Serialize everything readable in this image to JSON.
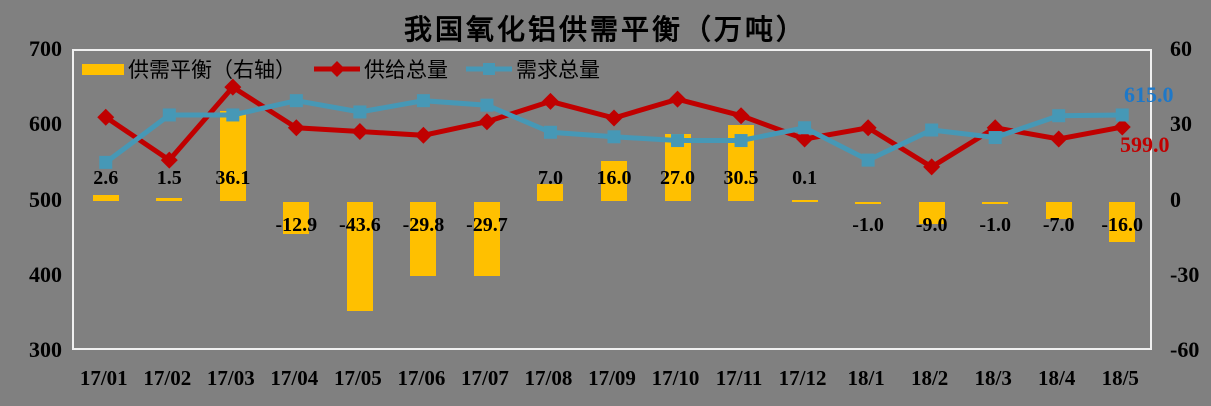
{
  "title": "我国氧化铝供需平衡（万吨）",
  "colors": {
    "background": "#808080",
    "plot_border": "#F0F0F0",
    "bar": "#FFC000",
    "supply_line": "#C00000",
    "demand_line": "#4698B6",
    "supply_end_label": "#C00000",
    "demand_end_label": "#1E78C8",
    "text": "#000000"
  },
  "chart_data": {
    "type": "combo",
    "categories": [
      "17/01",
      "17/02",
      "17/03",
      "17/04",
      "17/05",
      "17/06",
      "17/07",
      "17/08",
      "17/09",
      "17/10",
      "17/11",
      "17/12",
      "18/1",
      "18/2",
      "18/3",
      "18/4",
      "18/5"
    ],
    "series": [
      {
        "name": "供需平衡（右轴）",
        "type": "bar",
        "axis": "right",
        "values": [
          2.6,
          1.5,
          36.1,
          -12.9,
          -43.6,
          -29.8,
          -29.7,
          7.0,
          16.0,
          27.0,
          30.5,
          0.1,
          -1.0,
          -9.0,
          -1.0,
          -7.0,
          -16.0
        ],
        "labels": [
          "2.6",
          "1.5",
          "36.1",
          "-12.9",
          "-43.6",
          "-29.8",
          "-29.7",
          "7.0",
          "16.0",
          "27.0",
          "30.5",
          "0.1",
          "-1.0",
          "-9.0",
          "-1.0",
          "-7.0",
          "-16.0"
        ]
      },
      {
        "name": "供给总量",
        "type": "line",
        "marker": "diamond",
        "axis": "left",
        "values": [
          612,
          555,
          652,
          598,
          593,
          588,
          606,
          633,
          611,
          636,
          614,
          583,
          598,
          546,
          598,
          583,
          599
        ],
        "end_label": "599.0"
      },
      {
        "name": "需求总量",
        "type": "line",
        "marker": "square",
        "axis": "left",
        "values": [
          552,
          615,
          615,
          634,
          619,
          634,
          628,
          592,
          586,
          581,
          581,
          598,
          555,
          595,
          585,
          614,
          615
        ],
        "end_label": "615.0"
      }
    ],
    "left_axis": {
      "min": 300,
      "max": 700,
      "ticks": [
        "700",
        "600",
        "500",
        "400",
        "300"
      ]
    },
    "right_axis": {
      "min": -60,
      "max": 60,
      "ticks": [
        "60",
        "30",
        "0",
        "-30",
        "-60"
      ]
    },
    "grid": "off",
    "legend_position": "top-left-inside"
  }
}
